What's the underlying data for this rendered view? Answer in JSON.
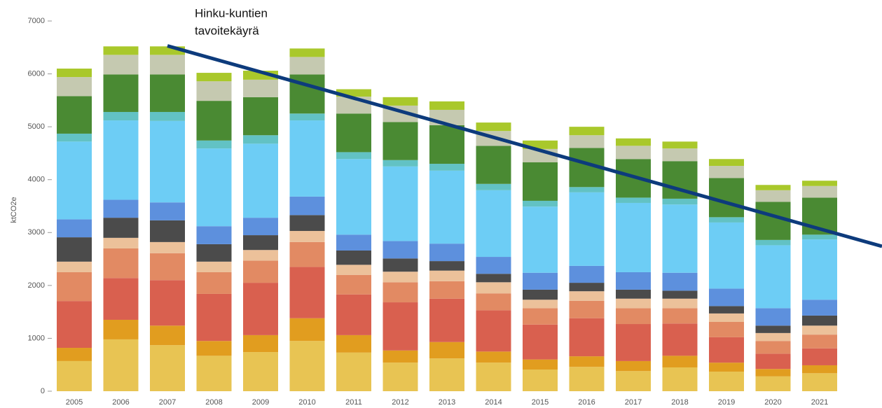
{
  "chart_data": {
    "type": "stacked_bar",
    "y_label": "ktCO2e",
    "annotation": [
      "Hinku-kuntien",
      "tavoitekäyrä"
    ],
    "categories": [
      "2005",
      "2006",
      "2007",
      "2008",
      "2009",
      "2010",
      "2011",
      "2012",
      "2013",
      "2014",
      "2015",
      "2016",
      "2017",
      "2018",
      "2019",
      "2020",
      "2021"
    ],
    "ylim": [
      0,
      7000
    ],
    "yticks": [
      0,
      1000,
      2000,
      3000,
      4000,
      5000,
      6000,
      7000
    ],
    "series": [
      {
        "color": "#e8c453",
        "values": [
          570,
          980,
          870,
          670,
          740,
          950,
          730,
          540,
          620,
          540,
          410,
          460,
          380,
          450,
          370,
          280,
          340
        ]
      },
      {
        "color": "#e19d1f",
        "values": [
          250,
          370,
          370,
          280,
          320,
          430,
          330,
          230,
          310,
          210,
          190,
          200,
          190,
          220,
          170,
          140,
          150
        ]
      },
      {
        "color": "#d9604f",
        "values": [
          885,
          790,
          860,
          890,
          990,
          970,
          770,
          910,
          820,
          780,
          660,
          720,
          700,
          610,
          480,
          290,
          320
        ]
      },
      {
        "color": "#e28a63",
        "values": [
          545,
          560,
          510,
          410,
          420,
          470,
          370,
          380,
          330,
          320,
          310,
          330,
          300,
          290,
          290,
          240,
          260
        ]
      },
      {
        "color": "#ecc19a",
        "values": [
          200,
          200,
          210,
          200,
          200,
          210,
          190,
          200,
          200,
          210,
          160,
          180,
          180,
          180,
          160,
          150,
          170
        ]
      },
      {
        "color": "#4b4b4b",
        "values": [
          460,
          380,
          410,
          330,
          280,
          300,
          270,
          250,
          180,
          160,
          190,
          160,
          170,
          150,
          140,
          140,
          190
        ]
      },
      {
        "color": "#5d90dd",
        "values": [
          340,
          340,
          340,
          340,
          330,
          350,
          300,
          330,
          330,
          320,
          320,
          320,
          330,
          340,
          330,
          330,
          300
        ]
      },
      {
        "color": "#6dcdf5",
        "values": [
          1470,
          1500,
          1540,
          1470,
          1400,
          1440,
          1430,
          1410,
          1380,
          1260,
          1250,
          1390,
          1310,
          1290,
          1250,
          1190,
          1140
        ]
      },
      {
        "color": "#62c2c4",
        "values": [
          150,
          160,
          170,
          150,
          160,
          130,
          130,
          120,
          130,
          120,
          110,
          100,
          100,
          110,
          100,
          100,
          90
        ]
      },
      {
        "color": "#4a8a33",
        "values": [
          710,
          710,
          710,
          750,
          720,
          740,
          730,
          720,
          730,
          720,
          730,
          740,
          730,
          710,
          740,
          720,
          700
        ]
      },
      {
        "color": "#c5c9b0",
        "values": [
          360,
          370,
          370,
          370,
          330,
          330,
          320,
          310,
          290,
          280,
          250,
          240,
          250,
          240,
          230,
          220,
          220
        ]
      },
      {
        "color": "#a9c82b",
        "values": [
          160,
          160,
          160,
          160,
          170,
          160,
          140,
          160,
          160,
          160,
          160,
          160,
          140,
          130,
          130,
          100,
          100
        ]
      }
    ],
    "target_line": {
      "color": "#0d3b7c",
      "categories": [
        "2007",
        "2021"
      ],
      "values": [
        6530,
        3070
      ]
    }
  }
}
